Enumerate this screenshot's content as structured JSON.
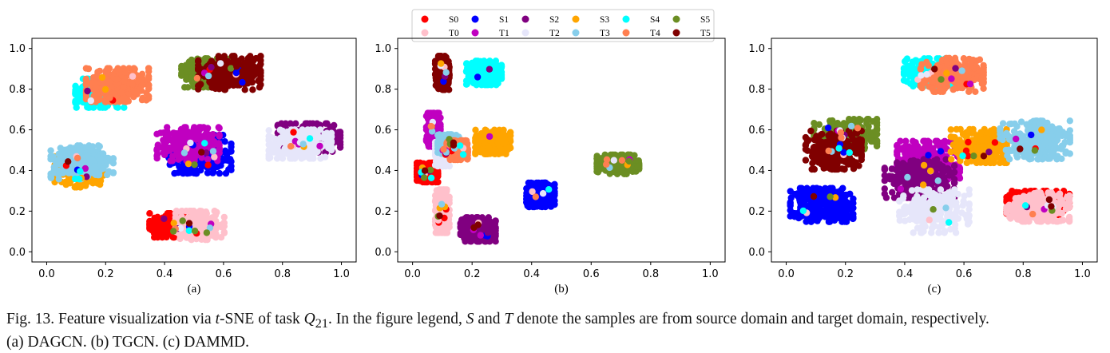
{
  "legend": {
    "entries": [
      {
        "label": "S0",
        "color": "#ff0000"
      },
      {
        "label": "T0",
        "color": "#ffc0cb"
      },
      {
        "label": "S1",
        "color": "#0000ff"
      },
      {
        "label": "T1",
        "color": "#c000c0"
      },
      {
        "label": "S2",
        "color": "#800080"
      },
      {
        "label": "T2",
        "color": "#e6e6fa"
      },
      {
        "label": "S3",
        "color": "#ffa500"
      },
      {
        "label": "T3",
        "color": "#87ceeb"
      },
      {
        "label": "S4",
        "color": "#00ffff"
      },
      {
        "label": "T4",
        "color": "#ff7f50"
      },
      {
        "label": "S5",
        "color": "#6b8e23"
      },
      {
        "label": "T5",
        "color": "#800000"
      }
    ]
  },
  "chart_data": [
    {
      "type": "scatter",
      "panel_label": "(a)",
      "method": "DAGCN",
      "xlim": [
        0.0,
        1.0
      ],
      "ylim": [
        0.0,
        1.0
      ],
      "xticks": [
        "0.0",
        "0.2",
        "0.4",
        "0.6",
        "0.8",
        "1.0"
      ],
      "yticks": [
        "0.0",
        "0.2",
        "0.4",
        "0.6",
        "0.8",
        "1.0"
      ],
      "clusters": [
        {
          "cls": "S0",
          "center": [
            0.42,
            0.13
          ],
          "spread": [
            0.06,
            0.05
          ]
        },
        {
          "cls": "T0",
          "center": [
            0.52,
            0.13
          ],
          "spread": [
            0.07,
            0.06
          ]
        },
        {
          "cls": "S1",
          "center": [
            0.52,
            0.48
          ],
          "spread": [
            0.09,
            0.08
          ]
        },
        {
          "cls": "T1",
          "center": [
            0.48,
            0.53
          ],
          "spread": [
            0.09,
            0.07
          ]
        },
        {
          "cls": "S2",
          "center": [
            0.89,
            0.56
          ],
          "spread": [
            0.09,
            0.06
          ]
        },
        {
          "cls": "T2",
          "center": [
            0.86,
            0.53
          ],
          "spread": [
            0.09,
            0.06
          ]
        },
        {
          "cls": "S3",
          "center": [
            0.11,
            0.4
          ],
          "spread": [
            0.07,
            0.07
          ]
        },
        {
          "cls": "T3",
          "center": [
            0.12,
            0.44
          ],
          "spread": [
            0.09,
            0.07
          ]
        },
        {
          "cls": "S4",
          "center": [
            0.18,
            0.78
          ],
          "spread": [
            0.07,
            0.06
          ]
        },
        {
          "cls": "T4",
          "center": [
            0.24,
            0.82
          ],
          "spread": [
            0.09,
            0.07
          ]
        },
        {
          "cls": "S5",
          "center": [
            0.54,
            0.88
          ],
          "spread": [
            0.07,
            0.06
          ]
        },
        {
          "cls": "T5",
          "center": [
            0.62,
            0.88
          ],
          "spread": [
            0.09,
            0.07
          ]
        }
      ]
    },
    {
      "type": "scatter",
      "panel_label": "(b)",
      "method": "TGCN",
      "xlim": [
        0.0,
        1.0
      ],
      "ylim": [
        0.0,
        1.0
      ],
      "xticks": [
        "0.0",
        "0.2",
        "0.4",
        "0.6",
        "0.8",
        "1.0"
      ],
      "yticks": [
        "0.0",
        "0.2",
        "0.4",
        "0.6",
        "0.8",
        "1.0"
      ],
      "clusters": [
        {
          "cls": "S0",
          "center": [
            0.05,
            0.39
          ],
          "spread": [
            0.03,
            0.04
          ]
        },
        {
          "cls": "T0",
          "center": [
            0.1,
            0.2
          ],
          "spread": [
            0.02,
            0.09
          ]
        },
        {
          "cls": "S1",
          "center": [
            0.43,
            0.28
          ],
          "spread": [
            0.04,
            0.05
          ]
        },
        {
          "cls": "T1",
          "center": [
            0.07,
            0.6
          ],
          "spread": [
            0.02,
            0.07
          ]
        },
        {
          "cls": "S2",
          "center": [
            0.22,
            0.11
          ],
          "spread": [
            0.05,
            0.05
          ]
        },
        {
          "cls": "T2",
          "center": [
            0.1,
            0.48
          ],
          "spread": [
            0.02,
            0.05
          ]
        },
        {
          "cls": "S3",
          "center": [
            0.27,
            0.54
          ],
          "spread": [
            0.05,
            0.05
          ]
        },
        {
          "cls": "T3",
          "center": [
            0.12,
            0.53
          ],
          "spread": [
            0.03,
            0.04
          ]
        },
        {
          "cls": "S4",
          "center": [
            0.24,
            0.88
          ],
          "spread": [
            0.05,
            0.05
          ]
        },
        {
          "cls": "T4",
          "center": [
            0.15,
            0.5
          ],
          "spread": [
            0.03,
            0.04
          ]
        },
        {
          "cls": "S5",
          "center": [
            0.69,
            0.43
          ],
          "spread": [
            0.06,
            0.04
          ]
        },
        {
          "cls": "T5",
          "center": [
            0.1,
            0.88
          ],
          "spread": [
            0.02,
            0.07
          ]
        }
      ]
    },
    {
      "type": "scatter",
      "panel_label": "(c)",
      "method": "DAMMD",
      "xlim": [
        0.0,
        1.0
      ],
      "ylim": [
        0.0,
        1.0
      ],
      "xticks": [
        "0.0",
        "0.2",
        "0.4",
        "0.6",
        "0.8",
        "1.0"
      ],
      "yticks": [
        "0.0",
        "0.2",
        "0.4",
        "0.6",
        "0.8",
        "1.0"
      ],
      "clusters": [
        {
          "cls": "S0",
          "center": [
            0.85,
            0.24
          ],
          "spread": [
            0.09,
            0.05
          ]
        },
        {
          "cls": "T0",
          "center": [
            0.85,
            0.22
          ],
          "spread": [
            0.09,
            0.06
          ]
        },
        {
          "cls": "S1",
          "center": [
            0.12,
            0.23
          ],
          "spread": [
            0.09,
            0.07
          ]
        },
        {
          "cls": "T1",
          "center": [
            0.48,
            0.45
          ],
          "spread": [
            0.09,
            0.08
          ]
        },
        {
          "cls": "S2",
          "center": [
            0.45,
            0.36
          ],
          "spread": [
            0.1,
            0.08
          ]
        },
        {
          "cls": "T2",
          "center": [
            0.5,
            0.2
          ],
          "spread": [
            0.1,
            0.09
          ]
        },
        {
          "cls": "S3",
          "center": [
            0.65,
            0.52
          ],
          "spread": [
            0.08,
            0.07
          ]
        },
        {
          "cls": "T3",
          "center": [
            0.84,
            0.55
          ],
          "spread": [
            0.1,
            0.08
          ]
        },
        {
          "cls": "S4",
          "center": [
            0.48,
            0.88
          ],
          "spread": [
            0.07,
            0.06
          ]
        },
        {
          "cls": "T4",
          "center": [
            0.56,
            0.87
          ],
          "spread": [
            0.09,
            0.07
          ]
        },
        {
          "cls": "S5",
          "center": [
            0.2,
            0.57
          ],
          "spread": [
            0.09,
            0.07
          ]
        },
        {
          "cls": "T5",
          "center": [
            0.16,
            0.5
          ],
          "spread": [
            0.08,
            0.08
          ]
        }
      ]
    }
  ],
  "caption": {
    "prefix": "Fig. 13.   Feature visualization via ",
    "method_italic": "t",
    "text_1": "-SNE of task ",
    "task_letter": "Q",
    "task_sub": "21",
    "text_2": ". In the figure legend, ",
    "s_letter": "S",
    "text_3": " and ",
    "t_letter": "T",
    "text_4": " denote the samples are from source domain and target domain, respectively.",
    "line2": "(a) DAGCN. (b) TGCN. (c) DAMMD."
  }
}
